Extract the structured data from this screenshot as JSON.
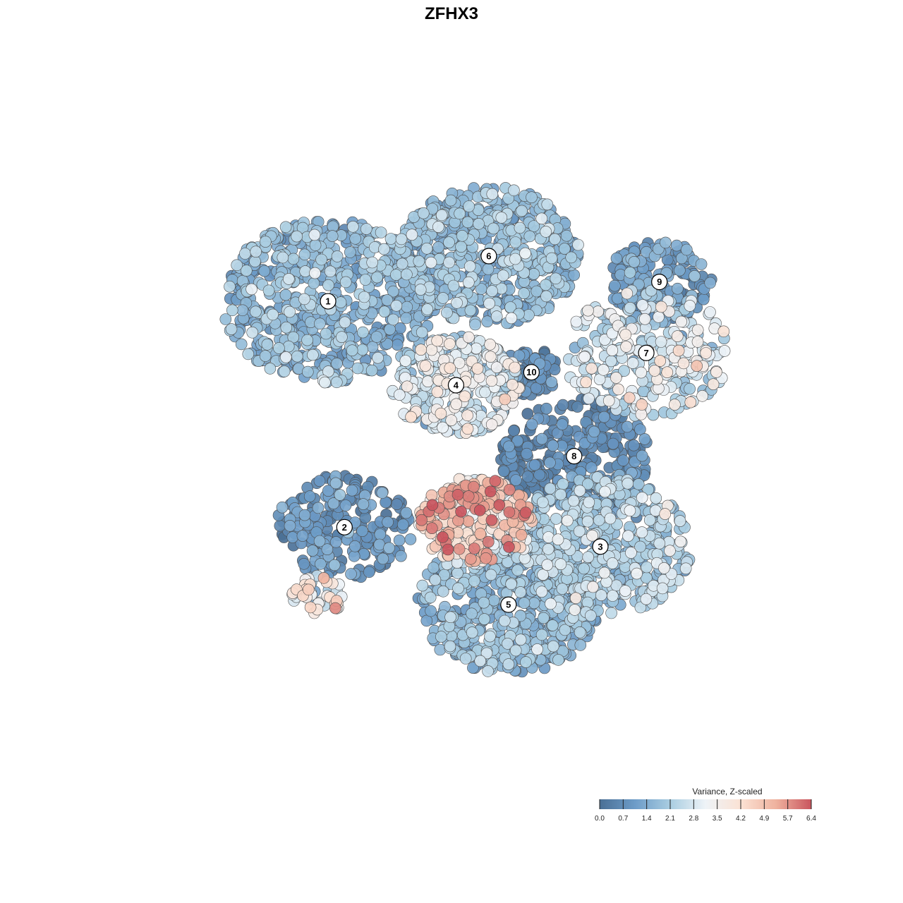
{
  "chart_data": {
    "type": "scatter",
    "title": "ZFHX3",
    "legend_title": "Variance, Z-scaled",
    "legend_position": "bottom-right",
    "color_scale": {
      "min": 0.0,
      "max": 6.4,
      "ticks": [
        "0.0",
        "0.7",
        "1.4",
        "2.1",
        "2.8",
        "3.5",
        "4.2",
        "4.9",
        "5.7",
        "6.4"
      ],
      "colors": [
        "#4a6f95",
        "#6d9cc8",
        "#a9cde1",
        "#eef3f7",
        "#fbe2d4",
        "#efb29e",
        "#c9555e"
      ]
    },
    "axes_visible": false,
    "grid": false,
    "clusters": [
      {
        "label": "1",
        "x": 0.285,
        "y": 0.73,
        "spread": 0.14,
        "n": 620,
        "mean": 1.6,
        "sd": 0.55
      },
      {
        "label": "2",
        "x": 0.31,
        "y": 0.38,
        "spread": 0.09,
        "n": 220,
        "mean": 0.8,
        "sd": 0.45
      },
      {
        "label": "3",
        "x": 0.7,
        "y": 0.35,
        "spread": 0.12,
        "n": 520,
        "mean": 2.0,
        "sd": 0.6
      },
      {
        "label": "4",
        "x": 0.48,
        "y": 0.6,
        "spread": 0.085,
        "n": 320,
        "mean": 2.7,
        "sd": 0.75
      },
      {
        "label": "5",
        "x": 0.56,
        "y": 0.26,
        "spread": 0.12,
        "n": 560,
        "mean": 1.6,
        "sd": 0.55
      },
      {
        "label": "6",
        "x": 0.53,
        "y": 0.8,
        "spread": 0.12,
        "n": 560,
        "mean": 1.7,
        "sd": 0.55
      },
      {
        "label": "7",
        "x": 0.77,
        "y": 0.65,
        "spread": 0.11,
        "n": 260,
        "mean": 2.7,
        "sd": 0.75
      },
      {
        "label": "8",
        "x": 0.66,
        "y": 0.49,
        "spread": 0.1,
        "n": 280,
        "mean": 0.5,
        "sd": 0.4
      },
      {
        "label": "9",
        "x": 0.79,
        "y": 0.76,
        "spread": 0.07,
        "n": 180,
        "mean": 1.0,
        "sd": 0.45
      },
      {
        "label": "10",
        "x": 0.595,
        "y": 0.62,
        "spread": 0.04,
        "n": 80,
        "mean": 0.6,
        "sd": 0.4
      },
      {
        "label": "",
        "x": 0.51,
        "y": 0.39,
        "spread": 0.075,
        "n": 260,
        "mean": 4.6,
        "sd": 1.0
      },
      {
        "label": "",
        "x": 0.27,
        "y": 0.275,
        "spread": 0.035,
        "n": 45,
        "mean": 3.4,
        "sd": 0.8
      }
    ]
  }
}
